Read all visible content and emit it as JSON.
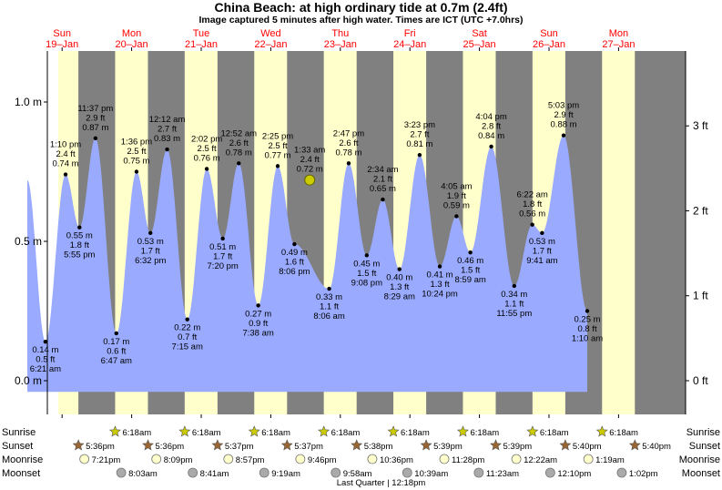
{
  "header": {
    "title": "China Beach: at high  ordinary tide at 0.7m (2.4ft)",
    "subtitle": "Image captured 5 minutes after high water. Times are ICT (UTC +7.0hrs)"
  },
  "colors": {
    "night": "#808080",
    "day": "#ffffcc",
    "water": "#99aaff",
    "day_label": "#ff0000",
    "current_marker": "#cccc00"
  },
  "days": [
    {
      "day": "Sun",
      "date": "19–Jan"
    },
    {
      "day": "Mon",
      "date": "20–Jan"
    },
    {
      "day": "Tue",
      "date": "21–Jan"
    },
    {
      "day": "Wed",
      "date": "22–Jan"
    },
    {
      "day": "Thu",
      "date": "23–Jan"
    },
    {
      "day": "Fri",
      "date": "24–Jan"
    },
    {
      "day": "Sat",
      "date": "25–Jan"
    },
    {
      "day": "Sun",
      "date": "26–Jan"
    },
    {
      "day": "Mon",
      "date": "27–Jan"
    }
  ],
  "chart_data": {
    "type": "area",
    "title": "China Beach: at high  ordinary tide at 0.7m (2.4ft)",
    "y_left_ticks": [
      "0.0 m",
      "0.5 m",
      "1.0 m"
    ],
    "y_right_ticks": [
      "0 ft",
      "1 ft",
      "2 ft",
      "3 ft"
    ],
    "ylim_m": [
      -0.06,
      1.19
    ],
    "current": {
      "time": "1:33 am",
      "height_ft": "2.4 ft",
      "height_m": "0.72 m",
      "day": 4.06,
      "m": 0.72
    },
    "tides": [
      {
        "day": 0.26,
        "m": 0.14,
        "time": "6:21 am",
        "ft": "0.5 ft",
        "label_m": "0.14 m",
        "type": "low"
      },
      {
        "day": 0.55,
        "m": 0.74,
        "time": "1:10 pm",
        "ft": "2.4 ft",
        "label_m": "0.74 m",
        "type": "high"
      },
      {
        "day": 0.75,
        "m": 0.55,
        "time": "5:55 pm",
        "ft": "1.8 ft",
        "label_m": "0.55 m",
        "type": "low"
      },
      {
        "day": 0.98,
        "m": 0.87,
        "time": "11:37 pm",
        "ft": "2.9 ft",
        "label_m": "0.87 m",
        "type": "high"
      },
      {
        "day": 1.28,
        "m": 0.17,
        "time": "6:47 am",
        "ft": "0.6 ft",
        "label_m": "0.17 m",
        "type": "low"
      },
      {
        "day": 1.57,
        "m": 0.75,
        "time": "1:36 pm",
        "ft": "2.5 ft",
        "label_m": "0.75 m",
        "type": "high"
      },
      {
        "day": 1.77,
        "m": 0.53,
        "time": "6:32 pm",
        "ft": "1.7 ft",
        "label_m": "0.53 m",
        "type": "low"
      },
      {
        "day": 2.01,
        "m": 0.83,
        "time": "12:12 am",
        "ft": "2.7 ft",
        "label_m": "0.83 m",
        "type": "high"
      },
      {
        "day": 2.3,
        "m": 0.22,
        "time": "7:15 am",
        "ft": "0.7 ft",
        "label_m": "0.22 m",
        "type": "low"
      },
      {
        "day": 2.58,
        "m": 0.76,
        "time": "2:02 pm",
        "ft": "2.5 ft",
        "label_m": "0.76 m",
        "type": "high"
      },
      {
        "day": 2.81,
        "m": 0.51,
        "time": "7:20 pm",
        "ft": "1.7 ft",
        "label_m": "0.51 m",
        "type": "low"
      },
      {
        "day": 3.04,
        "m": 0.78,
        "time": "12:52 am",
        "ft": "2.6 ft",
        "label_m": "0.78 m",
        "type": "high"
      },
      {
        "day": 3.32,
        "m": 0.27,
        "time": "7:38 am",
        "ft": "0.9 ft",
        "label_m": "0.27 m",
        "type": "low"
      },
      {
        "day": 3.6,
        "m": 0.77,
        "time": "2:25 pm",
        "ft": "2.5 ft",
        "label_m": "0.77 m",
        "type": "high"
      },
      {
        "day": 3.84,
        "m": 0.49,
        "time": "8:06 pm",
        "ft": "1.6 ft",
        "label_m": "0.49 m",
        "type": "low"
      },
      {
        "day": 4.34,
        "m": 0.33,
        "time": "8:06 am",
        "ft": "1.1 ft",
        "label_m": "0.33 m",
        "type": "low"
      },
      {
        "day": 4.62,
        "m": 0.78,
        "time": "2:47 pm",
        "ft": "2.6 ft",
        "label_m": "0.78 m",
        "type": "high"
      },
      {
        "day": 4.88,
        "m": 0.45,
        "time": "9:08 pm",
        "ft": "1.5 ft",
        "label_m": "0.45 m",
        "type": "low"
      },
      {
        "day": 5.11,
        "m": 0.65,
        "time": "2:34 am",
        "ft": "2.1 ft",
        "label_m": "0.65 m",
        "type": "high"
      },
      {
        "day": 5.35,
        "m": 0.4,
        "time": "8:29 am",
        "ft": "1.3 ft",
        "label_m": "0.40 m",
        "type": "low"
      },
      {
        "day": 5.64,
        "m": 0.81,
        "time": "3:23 pm",
        "ft": "2.7 ft",
        "label_m": "0.81 m",
        "type": "high"
      },
      {
        "day": 5.93,
        "m": 0.41,
        "time": "10:24 pm",
        "ft": "1.3 ft",
        "label_m": "0.41 m",
        "type": "low"
      },
      {
        "day": 6.17,
        "m": 0.59,
        "time": "4:05 am",
        "ft": "1.9 ft",
        "label_m": "0.59 m",
        "type": "high"
      },
      {
        "day": 6.37,
        "m": 0.46,
        "time": "8:59 am",
        "ft": "1.5 ft",
        "label_m": "0.46 m",
        "type": "low"
      },
      {
        "day": 6.67,
        "m": 0.84,
        "time": "4:04 pm",
        "ft": "2.8 ft",
        "label_m": "0.84 m",
        "type": "high"
      },
      {
        "day": 7.0,
        "m": 0.34,
        "time": "11:55 pm",
        "ft": "1.1 ft",
        "label_m": "0.34 m",
        "type": "low"
      },
      {
        "day": 7.26,
        "m": 0.56,
        "time": "6:22 am",
        "ft": "1.8 ft",
        "label_m": "0.56 m",
        "type": "high"
      },
      {
        "day": 7.4,
        "m": 0.53,
        "time": "9:41 am",
        "ft": "1.7 ft",
        "label_m": "0.53 m",
        "type": "low"
      },
      {
        "day": 7.71,
        "m": 0.88,
        "time": "5:03 pm",
        "ft": "2.9 ft",
        "label_m": "0.88 m",
        "type": "high"
      },
      {
        "day": 8.05,
        "m": 0.25,
        "time": "1:10 am",
        "ft": "0.8 ft",
        "label_m": "0.25 m",
        "type": "low"
      }
    ]
  },
  "legend_rows": {
    "labels": [
      "Sunrise",
      "Sunset",
      "Moonrise",
      "Moonset"
    ],
    "sunrise": [
      "6:18am",
      "6:18am",
      "6:18am",
      "6:18am",
      "6:18am",
      "6:18am",
      "6:18am",
      "6:18am"
    ],
    "sunset": [
      "5:36pm",
      "5:36pm",
      "5:37pm",
      "5:37pm",
      "5:38pm",
      "5:39pm",
      "5:39pm",
      "5:40pm",
      "5:40pm"
    ],
    "moonrise": [
      "7:21pm",
      "8:09pm",
      "8:57pm",
      "9:46pm",
      "10:36pm",
      "11:28pm",
      "12:22am",
      "1:19am"
    ],
    "moonset": [
      "8:03am",
      "8:41am",
      "9:19am",
      "9:58am",
      "10:39am",
      "11:23am",
      "12:10pm",
      "1:02pm"
    ],
    "moon_phase": "Last Quarter | 12:18pm"
  }
}
